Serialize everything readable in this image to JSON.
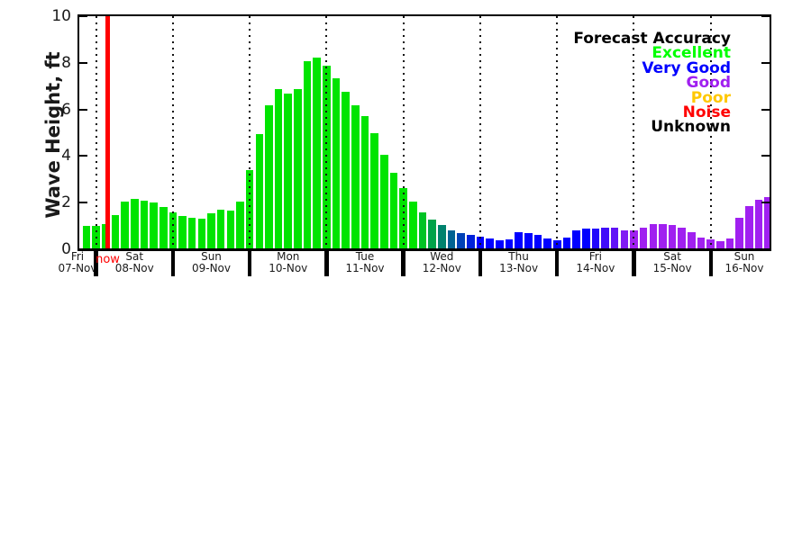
{
  "y_axis": {
    "title": "Wave Height, ft",
    "tick_labels": [
      "0",
      "2",
      "4",
      "6",
      "8",
      "10"
    ]
  },
  "x_axis": {
    "days": [
      {
        "name": "Fri",
        "date": "07-Nov"
      },
      {
        "name": "Sat",
        "date": "08-Nov"
      },
      {
        "name": "Sun",
        "date": "09-Nov"
      },
      {
        "name": "Mon",
        "date": "10-Nov"
      },
      {
        "name": "Tue",
        "date": "11-Nov"
      },
      {
        "name": "Wed",
        "date": "12-Nov"
      },
      {
        "name": "Thu",
        "date": "13-Nov"
      },
      {
        "name": "Fri",
        "date": "14-Nov"
      },
      {
        "name": "Sat",
        "date": "15-Nov"
      },
      {
        "name": "Sun",
        "date": "16-Nov"
      }
    ]
  },
  "now_marker": {
    "label": "now",
    "color": "#ff0000"
  },
  "legend": {
    "title": "Forecast Accuracy",
    "title_color": "#000000",
    "items": [
      {
        "label": "Excellent",
        "color": "#00ff00"
      },
      {
        "label": "Very Good",
        "color": "#0000ff"
      },
      {
        "label": "Good",
        "color": "#a020f0"
      },
      {
        "label": "Poor",
        "color": "#ffc800"
      },
      {
        "label": "Noise",
        "color": "#ff0000"
      },
      {
        "label": "Unknown",
        "color": "#000000"
      }
    ]
  },
  "chart_data": {
    "type": "bar",
    "title": "",
    "ylabel": "Wave Height, ft",
    "xlabel": "",
    "ylim": [
      0,
      10
    ],
    "yticks": [
      0,
      2,
      4,
      6,
      8,
      10
    ],
    "x_interval_hours": 3,
    "grid": "vertical dotted lines at day boundaries",
    "legend_position": "upper right",
    "now_line": {
      "label": "now",
      "located_between": "08-Nov 03:00 and 08-Nov 06:00",
      "color": "#ff0000"
    },
    "categories_days": [
      "Fri 07-Nov",
      "Sat 08-Nov",
      "Sun 09-Nov",
      "Mon 10-Nov",
      "Tue 11-Nov",
      "Wed 12-Nov",
      "Thu 13-Nov",
      "Fri 14-Nov",
      "Sat 15-Nov",
      "Sun 16-Nov"
    ],
    "bars": [
      {
        "t": "07-Nov 21:00",
        "v": 1.0,
        "c": "#00e400",
        "acc": "Excellent"
      },
      {
        "t": "08-Nov 00:00",
        "v": 1.0,
        "c": "#00e400",
        "acc": "Excellent"
      },
      {
        "t": "08-Nov 03:00",
        "v": 1.1,
        "c": "#00e400",
        "acc": "Excellent"
      },
      {
        "t": "08-Nov 06:00",
        "v": 1.48,
        "c": "#00e400",
        "acc": "Excellent"
      },
      {
        "t": "08-Nov 09:00",
        "v": 2.06,
        "c": "#00e400",
        "acc": "Excellent"
      },
      {
        "t": "08-Nov 12:00",
        "v": 2.16,
        "c": "#00e400",
        "acc": "Excellent"
      },
      {
        "t": "08-Nov 15:00",
        "v": 2.1,
        "c": "#00e400",
        "acc": "Excellent"
      },
      {
        "t": "08-Nov 18:00",
        "v": 2.0,
        "c": "#00e400",
        "acc": "Excellent"
      },
      {
        "t": "08-Nov 21:00",
        "v": 1.8,
        "c": "#00e400",
        "acc": "Excellent"
      },
      {
        "t": "09-Nov 00:00",
        "v": 1.6,
        "c": "#00e400",
        "acc": "Excellent"
      },
      {
        "t": "09-Nov 03:00",
        "v": 1.43,
        "c": "#00e400",
        "acc": "Excellent"
      },
      {
        "t": "09-Nov 06:00",
        "v": 1.37,
        "c": "#00e400",
        "acc": "Excellent"
      },
      {
        "t": "09-Nov 09:00",
        "v": 1.31,
        "c": "#00e400",
        "acc": "Excellent"
      },
      {
        "t": "09-Nov 12:00",
        "v": 1.55,
        "c": "#00e400",
        "acc": "Excellent"
      },
      {
        "t": "09-Nov 15:00",
        "v": 1.7,
        "c": "#00e400",
        "acc": "Excellent"
      },
      {
        "t": "09-Nov 18:00",
        "v": 1.65,
        "c": "#00e400",
        "acc": "Excellent"
      },
      {
        "t": "09-Nov 21:00",
        "v": 2.05,
        "c": "#00e400",
        "acc": "Excellent"
      },
      {
        "t": "10-Nov 00:00",
        "v": 3.4,
        "c": "#00e400",
        "acc": "Excellent"
      },
      {
        "t": "10-Nov 03:00",
        "v": 4.94,
        "c": "#00e400",
        "acc": "Excellent"
      },
      {
        "t": "10-Nov 06:00",
        "v": 6.17,
        "c": "#00e400",
        "acc": "Excellent"
      },
      {
        "t": "10-Nov 09:00",
        "v": 6.86,
        "c": "#00e400",
        "acc": "Excellent"
      },
      {
        "t": "10-Nov 12:00",
        "v": 6.68,
        "c": "#00e400",
        "acc": "Excellent"
      },
      {
        "t": "10-Nov 15:00",
        "v": 6.86,
        "c": "#00e400",
        "acc": "Excellent"
      },
      {
        "t": "10-Nov 18:00",
        "v": 8.06,
        "c": "#00e400",
        "acc": "Excellent"
      },
      {
        "t": "10-Nov 21:00",
        "v": 8.21,
        "c": "#00e400",
        "acc": "Excellent"
      },
      {
        "t": "11-Nov 00:00",
        "v": 7.89,
        "c": "#00e400",
        "acc": "Excellent"
      },
      {
        "t": "11-Nov 03:00",
        "v": 7.33,
        "c": "#00e400",
        "acc": "Excellent"
      },
      {
        "t": "11-Nov 06:00",
        "v": 6.75,
        "c": "#00e400",
        "acc": "Excellent"
      },
      {
        "t": "11-Nov 09:00",
        "v": 6.17,
        "c": "#00e400",
        "acc": "Excellent"
      },
      {
        "t": "11-Nov 12:00",
        "v": 5.73,
        "c": "#00e400",
        "acc": "Excellent"
      },
      {
        "t": "11-Nov 15:00",
        "v": 4.98,
        "c": "#00e400",
        "acc": "Excellent"
      },
      {
        "t": "11-Nov 18:00",
        "v": 4.07,
        "c": "#00e400",
        "acc": "Excellent"
      },
      {
        "t": "11-Nov 21:00",
        "v": 3.3,
        "c": "#00e400",
        "acc": "Excellent"
      },
      {
        "t": "12-Nov 00:00",
        "v": 2.61,
        "c": "#00e400",
        "acc": "Excellent"
      },
      {
        "t": "12-Nov 03:00",
        "v": 2.03,
        "c": "#00e400",
        "acc": "Excellent"
      },
      {
        "t": "12-Nov 06:00",
        "v": 1.58,
        "c": "#00c324",
        "acc": "Excellent/Very Good"
      },
      {
        "t": "12-Nov 09:00",
        "v": 1.27,
        "c": "#00a349",
        "acc": "Excellent/Very Good"
      },
      {
        "t": "12-Nov 12:00",
        "v": 1.05,
        "c": "#00826d",
        "acc": "Excellent/Very Good"
      },
      {
        "t": "12-Nov 15:00",
        "v": 0.82,
        "c": "#006292",
        "acc": "Excellent/Very Good"
      },
      {
        "t": "12-Nov 18:00",
        "v": 0.7,
        "c": "#0041b6",
        "acc": "Excellent/Very Good"
      },
      {
        "t": "12-Nov 21:00",
        "v": 0.61,
        "c": "#0021db",
        "acc": "Excellent/Very Good"
      },
      {
        "t": "13-Nov 00:00",
        "v": 0.56,
        "c": "#0000ff",
        "acc": "Very Good"
      },
      {
        "t": "13-Nov 03:00",
        "v": 0.48,
        "c": "#0000ff",
        "acc": "Very Good"
      },
      {
        "t": "13-Nov 06:00",
        "v": 0.39,
        "c": "#0000ff",
        "acc": "Very Good"
      },
      {
        "t": "13-Nov 09:00",
        "v": 0.43,
        "c": "#0000ff",
        "acc": "Very Good"
      },
      {
        "t": "13-Nov 12:00",
        "v": 0.74,
        "c": "#0000ff",
        "acc": "Very Good"
      },
      {
        "t": "13-Nov 15:00",
        "v": 0.71,
        "c": "#0000ff",
        "acc": "Very Good"
      },
      {
        "t": "13-Nov 18:00",
        "v": 0.61,
        "c": "#0000ff",
        "acc": "Very Good"
      },
      {
        "t": "13-Nov 21:00",
        "v": 0.48,
        "c": "#0000ff",
        "acc": "Very Good"
      },
      {
        "t": "14-Nov 00:00",
        "v": 0.39,
        "c": "#0000ff",
        "acc": "Very Good"
      },
      {
        "t": "14-Nov 03:00",
        "v": 0.52,
        "c": "#0000ff",
        "acc": "Very Good"
      },
      {
        "t": "14-Nov 06:00",
        "v": 0.8,
        "c": "#0000ff",
        "acc": "Very Good"
      },
      {
        "t": "14-Nov 09:00",
        "v": 0.87,
        "c": "#0000ff",
        "acc": "Very Good"
      },
      {
        "t": "14-Nov 12:00",
        "v": 0.88,
        "c": "#2006fc",
        "acc": "Very Good/Good"
      },
      {
        "t": "14-Nov 15:00",
        "v": 0.93,
        "c": "#400df9",
        "acc": "Very Good/Good"
      },
      {
        "t": "14-Nov 18:00",
        "v": 0.91,
        "c": "#6013f6",
        "acc": "Very Good/Good"
      },
      {
        "t": "14-Nov 21:00",
        "v": 0.8,
        "c": "#801af3",
        "acc": "Very Good/Good"
      },
      {
        "t": "15-Nov 00:00",
        "v": 0.83,
        "c": "#a020f0",
        "acc": "Good"
      },
      {
        "t": "15-Nov 03:00",
        "v": 0.93,
        "c": "#a020f0",
        "acc": "Good"
      },
      {
        "t": "15-Nov 06:00",
        "v": 1.07,
        "c": "#a020f0",
        "acc": "Good"
      },
      {
        "t": "15-Nov 09:00",
        "v": 1.1,
        "c": "#a020f0",
        "acc": "Good"
      },
      {
        "t": "15-Nov 12:00",
        "v": 1.03,
        "c": "#a020f0",
        "acc": "Good"
      },
      {
        "t": "15-Nov 15:00",
        "v": 0.91,
        "c": "#a020f0",
        "acc": "Good"
      },
      {
        "t": "15-Nov 18:00",
        "v": 0.74,
        "c": "#a020f0",
        "acc": "Good"
      },
      {
        "t": "15-Nov 21:00",
        "v": 0.52,
        "c": "#a020f0",
        "acc": "Good"
      },
      {
        "t": "16-Nov 00:00",
        "v": 0.44,
        "c": "#a020f0",
        "acc": "Good"
      },
      {
        "t": "16-Nov 03:00",
        "v": 0.36,
        "c": "#a020f0",
        "acc": "Good"
      },
      {
        "t": "16-Nov 06:00",
        "v": 0.46,
        "c": "#a020f0",
        "acc": "Good"
      },
      {
        "t": "16-Nov 09:00",
        "v": 1.36,
        "c": "#a020f0",
        "acc": "Good"
      },
      {
        "t": "16-Nov 12:00",
        "v": 1.84,
        "c": "#a020f0",
        "acc": "Good"
      },
      {
        "t": "16-Nov 15:00",
        "v": 2.13,
        "c": "#a020f0",
        "acc": "Good"
      },
      {
        "t": "16-Nov 18:00",
        "v": 2.25,
        "c": "#a020f0",
        "acc": "Good"
      }
    ]
  }
}
